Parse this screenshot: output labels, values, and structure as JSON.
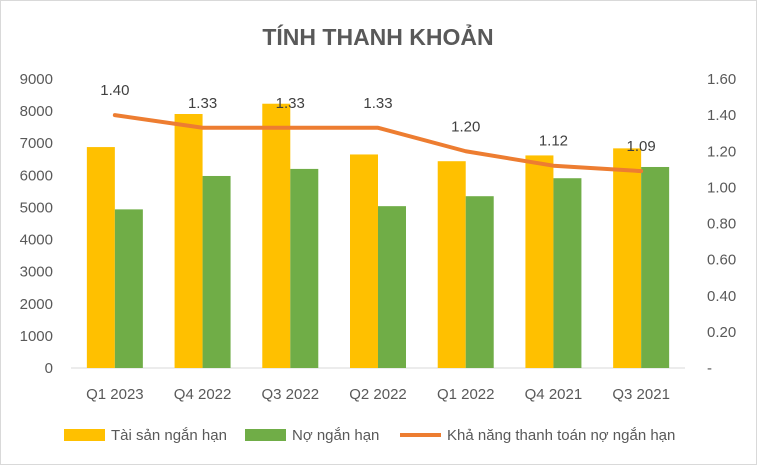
{
  "chart_data": {
    "type": "bar",
    "title": "TÍNH THANH KHOẢN",
    "categories": [
      "Q1 2023",
      "Q4 2022",
      "Q3 2022",
      "Q2 2022",
      "Q1 2022",
      "Q4 2021",
      "Q3 2021"
    ],
    "series": [
      {
        "name": "Tài sản ngắn hạn",
        "type": "bar",
        "axis": "left",
        "color": "#FFC000",
        "values": [
          6880,
          7910,
          8230,
          6650,
          6440,
          6620,
          6840
        ]
      },
      {
        "name": "Nợ ngắn hạn",
        "type": "bar",
        "axis": "left",
        "color": "#70AD47",
        "values": [
          4940,
          5980,
          6200,
          5040,
          5350,
          5910,
          6260
        ]
      },
      {
        "name": "Khả năng thanh toán nợ ngắn hạn",
        "type": "line",
        "axis": "right",
        "color": "#ED7D31",
        "values": [
          1.4,
          1.33,
          1.33,
          1.33,
          1.2,
          1.12,
          1.09
        ],
        "labels": [
          "1.40",
          "1.33",
          "1.33",
          "1.33",
          "1.20",
          "1.12",
          "1.09"
        ]
      }
    ],
    "y_left": {
      "min": 0,
      "max": 9000,
      "ticks": [
        "0",
        "1000",
        "2000",
        "3000",
        "4000",
        "5000",
        "6000",
        "7000",
        "8000",
        "9000"
      ]
    },
    "y_right": {
      "min": 0,
      "max": 1.6,
      "ticks": [
        "-",
        "0.20",
        "0.40",
        "0.60",
        "0.80",
        "1.00",
        "1.20",
        "1.40",
        "1.60"
      ]
    },
    "grid": false,
    "legend": "bottom"
  }
}
